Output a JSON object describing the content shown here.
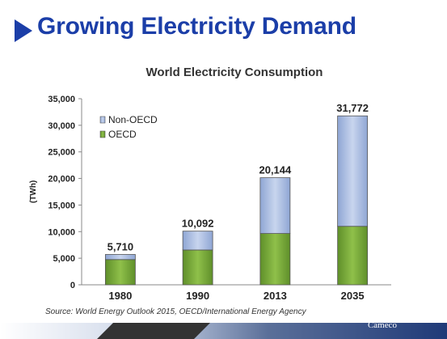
{
  "slide": {
    "title": "Growing Electricity Demand",
    "source": "Source: World Energy Outlook 2015, OECD/International Energy Agency",
    "logo_text": "Cameco"
  },
  "colors": {
    "title_blue": "#1b3ea8",
    "oecd_green": "#7aaa3c",
    "non_oecd_blue": "#aebfe0",
    "bar_border": "#555555"
  },
  "chart_data": {
    "type": "bar",
    "stacked": true,
    "title": "World Electricity Consumption",
    "xlabel": "",
    "ylabel": "(TWh)",
    "ylim": [
      0,
      35000
    ],
    "yticks": [
      0,
      5000,
      10000,
      15000,
      20000,
      25000,
      30000,
      35000
    ],
    "ytick_labels": [
      "0",
      "5,000",
      "10,000",
      "15,000",
      "20,000",
      "25,000",
      "30,000",
      "35,000"
    ],
    "categories": [
      "1980",
      "1990",
      "2013",
      "2035"
    ],
    "series": [
      {
        "name": "OECD",
        "color": "#7aaa3c",
        "values": [
          4750,
          6550,
          9650,
          11000
        ]
      },
      {
        "name": "Non-OECD",
        "color": "#aebfe0",
        "values": [
          960,
          3542,
          10494,
          20772
        ]
      }
    ],
    "totals": [
      5710,
      10092,
      20144,
      31772
    ],
    "total_labels": [
      "5,710",
      "10,092",
      "20,144",
      "31,772"
    ],
    "legend": [
      "Non-OECD",
      "OECD"
    ],
    "legend_position": "top-left",
    "grid": false
  }
}
